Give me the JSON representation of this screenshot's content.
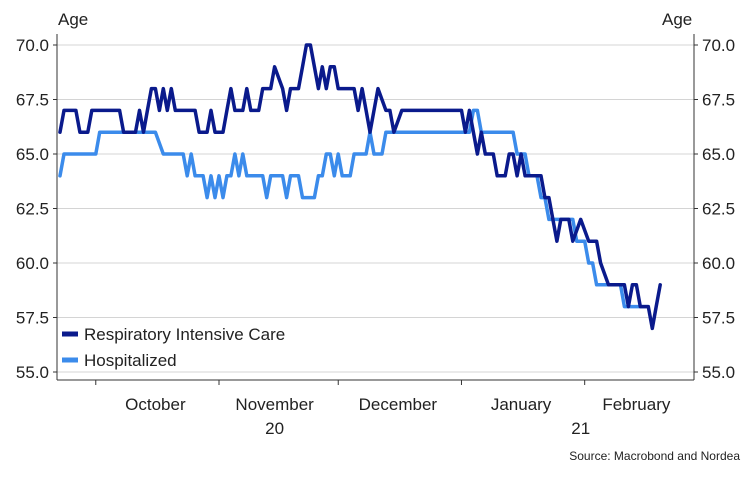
{
  "chart_data": {
    "type": "line",
    "y_axis_left_title": "Age",
    "y_axis_right_title": "Age",
    "ylim": [
      55.0,
      70.0
    ],
    "y_ticks": [
      "70.0",
      "67.5",
      "65.0",
      "62.5",
      "60.0",
      "57.5",
      "55.0"
    ],
    "x_range": [
      "2020-09-22",
      "2021-02-28"
    ],
    "x_month_labels": [
      {
        "label": "October",
        "date": "2020-10-16"
      },
      {
        "label": "November",
        "date": "2020-11-15"
      },
      {
        "label": "December",
        "date": "2020-12-16"
      },
      {
        "label": "January",
        "date": "2021-01-16"
      },
      {
        "label": "February",
        "date": "2021-02-14"
      }
    ],
    "x_year_labels": [
      {
        "label": "20",
        "date": "2020-11-15"
      },
      {
        "label": "21",
        "date": "2021-01-31"
      }
    ],
    "x_tick_dates": [
      "2020-10-01",
      "2020-11-01",
      "2020-12-01",
      "2021-01-01",
      "2021-02-01"
    ],
    "grid": "horizontal",
    "legend_position": "bottom-left",
    "source": "Source: Macrobond and Nordea",
    "series": [
      {
        "name": "Respiratory Intensive Care",
        "color": "#0a1a8c",
        "points": [
          [
            "2020-09-22",
            66
          ],
          [
            "2020-09-23",
            67
          ],
          [
            "2020-09-26",
            67
          ],
          [
            "2020-09-27",
            66
          ],
          [
            "2020-09-29",
            66
          ],
          [
            "2020-09-30",
            67
          ],
          [
            "2020-10-07",
            67
          ],
          [
            "2020-10-08",
            66
          ],
          [
            "2020-10-11",
            66
          ],
          [
            "2020-10-12",
            67
          ],
          [
            "2020-10-13",
            66
          ],
          [
            "2020-10-14",
            67
          ],
          [
            "2020-10-15",
            68
          ],
          [
            "2020-10-16",
            68
          ],
          [
            "2020-10-17",
            67
          ],
          [
            "2020-10-18",
            68
          ],
          [
            "2020-10-19",
            67
          ],
          [
            "2020-10-20",
            68
          ],
          [
            "2020-10-21",
            67
          ],
          [
            "2020-10-26",
            67
          ],
          [
            "2020-10-27",
            66
          ],
          [
            "2020-10-29",
            66
          ],
          [
            "2020-10-30",
            67
          ],
          [
            "2020-10-31",
            66
          ],
          [
            "2020-11-02",
            66
          ],
          [
            "2020-11-03",
            67
          ],
          [
            "2020-11-04",
            68
          ],
          [
            "2020-11-05",
            67
          ],
          [
            "2020-11-07",
            67
          ],
          [
            "2020-11-08",
            68
          ],
          [
            "2020-11-09",
            67
          ],
          [
            "2020-11-11",
            67
          ],
          [
            "2020-11-12",
            68
          ],
          [
            "2020-11-14",
            68
          ],
          [
            "2020-11-15",
            69
          ],
          [
            "2020-11-17",
            68
          ],
          [
            "2020-11-18",
            67
          ],
          [
            "2020-11-19",
            68
          ],
          [
            "2020-11-21",
            68
          ],
          [
            "2020-11-22",
            69
          ],
          [
            "2020-11-23",
            70
          ],
          [
            "2020-11-24",
            70
          ],
          [
            "2020-11-26",
            68
          ],
          [
            "2020-11-27",
            69
          ],
          [
            "2020-11-28",
            68
          ],
          [
            "2020-11-29",
            69
          ],
          [
            "2020-11-30",
            69
          ],
          [
            "2020-12-01",
            68
          ],
          [
            "2020-12-05",
            68
          ],
          [
            "2020-12-06",
            67
          ],
          [
            "2020-12-07",
            68
          ],
          [
            "2020-12-08",
            67
          ],
          [
            "2020-12-09",
            66
          ],
          [
            "2020-12-11",
            68
          ],
          [
            "2020-12-13",
            67
          ],
          [
            "2020-12-14",
            67
          ],
          [
            "2020-12-15",
            66
          ],
          [
            "2020-12-17",
            67
          ],
          [
            "2021-01-01",
            67
          ],
          [
            "2021-01-02",
            66
          ],
          [
            "2021-01-03",
            67
          ],
          [
            "2021-01-05",
            65
          ],
          [
            "2021-01-06",
            66
          ],
          [
            "2021-01-07",
            65
          ],
          [
            "2021-01-09",
            65
          ],
          [
            "2021-01-10",
            64
          ],
          [
            "2021-01-12",
            64
          ],
          [
            "2021-01-13",
            65
          ],
          [
            "2021-01-14",
            65
          ],
          [
            "2021-01-15",
            64
          ],
          [
            "2021-01-16",
            65
          ],
          [
            "2021-01-17",
            64
          ],
          [
            "2021-01-21",
            64
          ],
          [
            "2021-01-22",
            63
          ],
          [
            "2021-01-23",
            63
          ],
          [
            "2021-01-24",
            62
          ],
          [
            "2021-01-25",
            61
          ],
          [
            "2021-01-26",
            62
          ],
          [
            "2021-01-28",
            62
          ],
          [
            "2021-01-29",
            61
          ],
          [
            "2021-01-31",
            62
          ],
          [
            "2021-02-02",
            61
          ],
          [
            "2021-02-04",
            61
          ],
          [
            "2021-02-05",
            60
          ],
          [
            "2021-02-07",
            59
          ],
          [
            "2021-02-11",
            59
          ],
          [
            "2021-02-12",
            58
          ],
          [
            "2021-02-13",
            59
          ],
          [
            "2021-02-14",
            59
          ],
          [
            "2021-02-15",
            58
          ],
          [
            "2021-02-17",
            58
          ],
          [
            "2021-02-18",
            57
          ],
          [
            "2021-02-19",
            58
          ],
          [
            "2021-02-20",
            59
          ]
        ]
      },
      {
        "name": "Hospitalized",
        "color": "#3b8beb",
        "points": [
          [
            "2020-09-22",
            64
          ],
          [
            "2020-09-23",
            65
          ],
          [
            "2020-09-26",
            65
          ],
          [
            "2020-10-01",
            65
          ],
          [
            "2020-10-02",
            66
          ],
          [
            "2020-10-16",
            66
          ],
          [
            "2020-10-18",
            65
          ],
          [
            "2020-10-23",
            65
          ],
          [
            "2020-10-24",
            64
          ],
          [
            "2020-10-25",
            65
          ],
          [
            "2020-10-26",
            64
          ],
          [
            "2020-10-28",
            64
          ],
          [
            "2020-10-29",
            63
          ],
          [
            "2020-10-30",
            64
          ],
          [
            "2020-10-31",
            63
          ],
          [
            "2020-11-01",
            64
          ],
          [
            "2020-11-02",
            63
          ],
          [
            "2020-11-03",
            64
          ],
          [
            "2020-11-04",
            64
          ],
          [
            "2020-11-05",
            65
          ],
          [
            "2020-11-06",
            64
          ],
          [
            "2020-11-07",
            65
          ],
          [
            "2020-11-08",
            64
          ],
          [
            "2020-11-12",
            64
          ],
          [
            "2020-11-13",
            63
          ],
          [
            "2020-11-14",
            64
          ],
          [
            "2020-11-17",
            64
          ],
          [
            "2020-11-18",
            63
          ],
          [
            "2020-11-19",
            64
          ],
          [
            "2020-11-21",
            64
          ],
          [
            "2020-11-22",
            63
          ],
          [
            "2020-11-25",
            63
          ],
          [
            "2020-11-26",
            64
          ],
          [
            "2020-11-27",
            64
          ],
          [
            "2020-11-28",
            65
          ],
          [
            "2020-11-29",
            65
          ],
          [
            "2020-11-30",
            64
          ],
          [
            "2020-12-01",
            65
          ],
          [
            "2020-12-02",
            64
          ],
          [
            "2020-12-04",
            64
          ],
          [
            "2020-12-05",
            65
          ],
          [
            "2020-12-08",
            65
          ],
          [
            "2020-12-09",
            66
          ],
          [
            "2020-12-10",
            65
          ],
          [
            "2020-12-12",
            65
          ],
          [
            "2020-12-13",
            66
          ],
          [
            "2021-01-03",
            66
          ],
          [
            "2021-01-04",
            67
          ],
          [
            "2021-01-05",
            67
          ],
          [
            "2021-01-06",
            66
          ],
          [
            "2021-01-14",
            66
          ],
          [
            "2021-01-15",
            65
          ],
          [
            "2021-01-17",
            65
          ],
          [
            "2021-01-18",
            64
          ],
          [
            "2021-01-20",
            64
          ],
          [
            "2021-01-21",
            63
          ],
          [
            "2021-01-22",
            63
          ],
          [
            "2021-01-23",
            62
          ],
          [
            "2021-01-29",
            62
          ],
          [
            "2021-01-30",
            61
          ],
          [
            "2021-02-01",
            61
          ],
          [
            "2021-02-02",
            60
          ],
          [
            "2021-02-03",
            60
          ],
          [
            "2021-02-04",
            59
          ],
          [
            "2021-02-10",
            59
          ],
          [
            "2021-02-11",
            58
          ],
          [
            "2021-02-17",
            58
          ]
        ]
      }
    ]
  }
}
